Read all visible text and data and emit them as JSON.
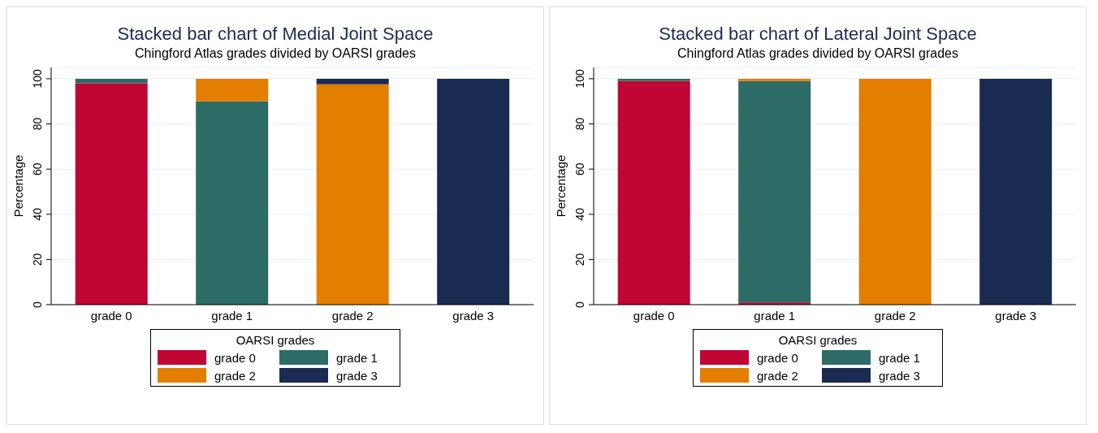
{
  "chart_data": [
    {
      "type": "bar",
      "title": "Stacked bar chart of Medial Joint Space",
      "subtitle": "Chingford Atlas grades divided by OARSI grades",
      "ylabel": "Percentage",
      "legend_title": "OARSI grades",
      "categories": [
        "grade 0",
        "grade 1",
        "grade 2",
        "grade 3"
      ],
      "stacked": true,
      "ylim": [
        0,
        105
      ],
      "yticks": [
        0,
        20,
        40,
        60,
        80,
        100
      ],
      "grid": "y",
      "legend": "bottom",
      "series": [
        {
          "name": "grade 0",
          "color": "#c10534",
          "values": [
            98,
            0,
            0,
            0
          ]
        },
        {
          "name": "grade 1",
          "color": "#2d6b66",
          "values": [
            2,
            90,
            0,
            0
          ]
        },
        {
          "name": "grade 2",
          "color": "#e37e00",
          "values": [
            0,
            10,
            97.5,
            0
          ]
        },
        {
          "name": "grade 3",
          "color": "#1a2b51",
          "values": [
            0,
            0,
            2.5,
            100
          ]
        }
      ]
    },
    {
      "type": "bar",
      "title": "Stacked bar chart of Lateral Joint Space",
      "subtitle": "Chingford Atlas grades divided by OARSI grades",
      "ylabel": "Percentage",
      "legend_title": "OARSI grades",
      "categories": [
        "grade 0",
        "grade 1",
        "grade 2",
        "grade 3"
      ],
      "stacked": true,
      "ylim": [
        0,
        105
      ],
      "yticks": [
        0,
        20,
        40,
        60,
        80,
        100
      ],
      "grid": "y",
      "legend": "bottom",
      "series": [
        {
          "name": "grade 0",
          "color": "#c10534",
          "values": [
            99,
            1,
            0,
            0
          ]
        },
        {
          "name": "grade 1",
          "color": "#2d6b66",
          "values": [
            1,
            98,
            0,
            0
          ]
        },
        {
          "name": "grade 2",
          "color": "#e37e00",
          "values": [
            0,
            1,
            100,
            0
          ]
        },
        {
          "name": "grade 3",
          "color": "#1a2b51",
          "values": [
            0,
            0,
            0,
            100
          ]
        }
      ]
    }
  ]
}
